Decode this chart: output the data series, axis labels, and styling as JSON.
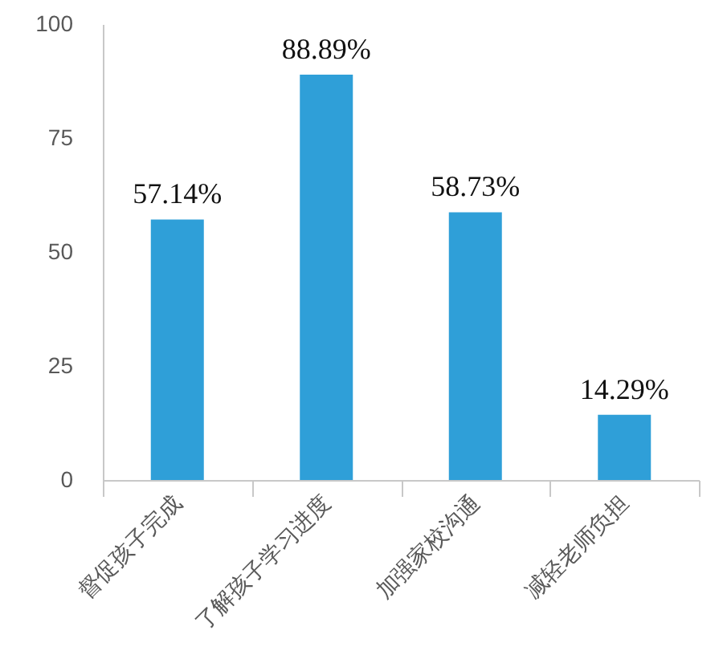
{
  "chart_data": {
    "type": "bar",
    "categories": [
      "督促孩子完成",
      "了解孩子学习进度",
      "加强家校沟通",
      "减轻老师负担"
    ],
    "values": [
      57.14,
      88.89,
      58.73,
      14.29
    ],
    "value_labels": [
      "57.14%",
      "88.89%",
      "58.73%",
      "14.29%"
    ],
    "color": "#2f9fd8",
    "ylim": [
      0,
      100
    ],
    "yticks": [
      0,
      25,
      50,
      75,
      100
    ]
  }
}
